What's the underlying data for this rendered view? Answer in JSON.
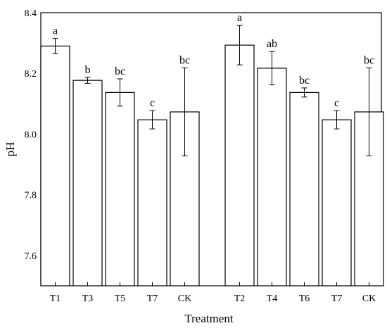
{
  "chart_data": {
    "type": "bar",
    "xlabel": "Treatment",
    "ylabel": "pH",
    "ylim": [
      7.5,
      8.4
    ],
    "yticks": [
      "7.6",
      "7.8",
      "8.0",
      "8.2",
      "8.4"
    ],
    "yticks_values": [
      7.6,
      7.8,
      8.0,
      8.2,
      8.4
    ],
    "groups": [
      {
        "categories": [
          "T1",
          "T3",
          "T5",
          "T7",
          "CK"
        ],
        "values": [
          8.29,
          8.177,
          8.137,
          8.047,
          8.073
        ],
        "errors": [
          0.025,
          0.01,
          0.045,
          0.03,
          0.145
        ],
        "letters": [
          "a",
          "b",
          "bc",
          "c",
          "bc"
        ]
      },
      {
        "categories": [
          "T2",
          "T4",
          "T6",
          "T7",
          "CK"
        ],
        "values": [
          8.293,
          8.217,
          8.137,
          8.047,
          8.073
        ],
        "errors": [
          0.065,
          0.055,
          0.015,
          0.03,
          0.145
        ],
        "letters": [
          "a",
          "ab",
          "bc",
          "c",
          "bc"
        ]
      }
    ],
    "grid": false,
    "legend": "none",
    "bar_fill": "#ffffff",
    "bar_stroke": "#000000"
  }
}
